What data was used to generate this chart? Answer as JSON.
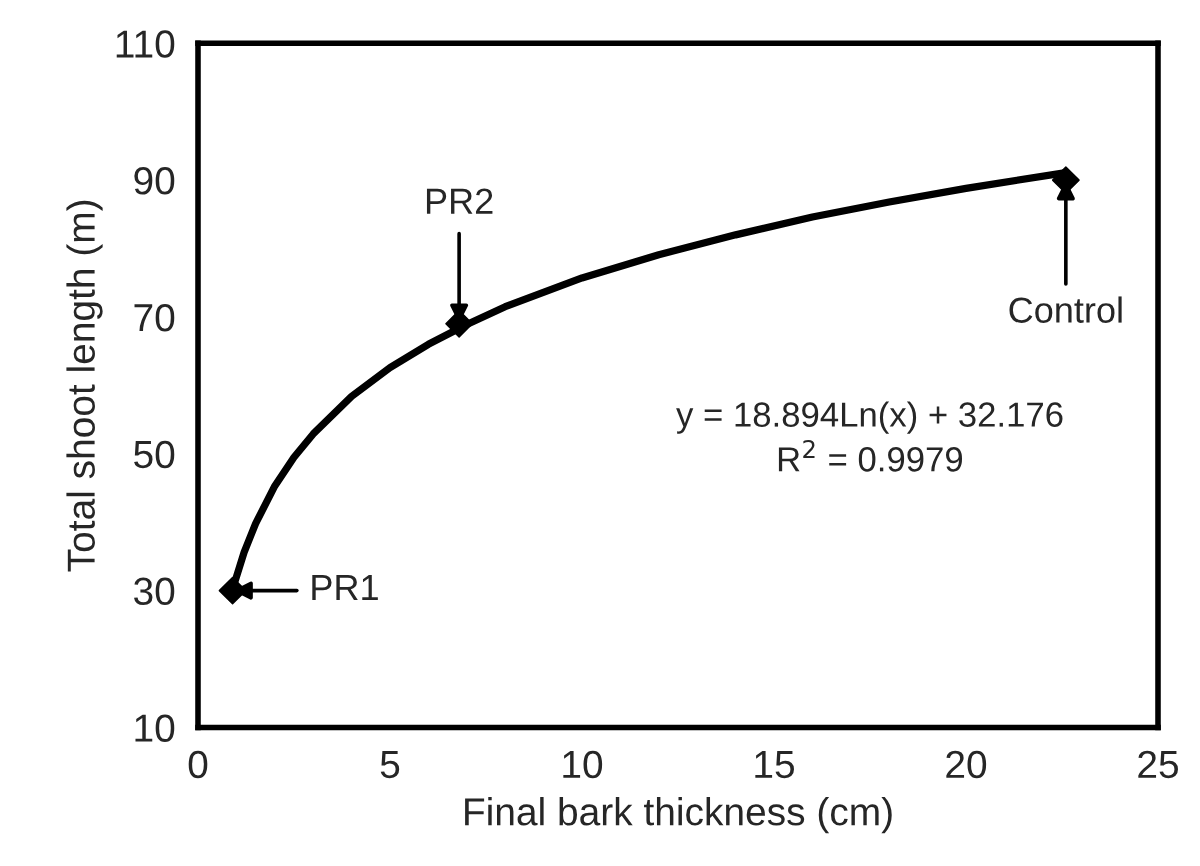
{
  "chart_data": {
    "type": "scatter",
    "xlabel": "Final bark thickness (cm)",
    "ylabel": "Total shoot length (m)",
    "xlim": [
      0,
      25
    ],
    "xticks": [
      0,
      5,
      10,
      15,
      20,
      25
    ],
    "ylim": [
      10,
      110
    ],
    "yticks": [
      10,
      30,
      50,
      70,
      90,
      110
    ],
    "grid": false,
    "legend": false,
    "series": [
      {
        "type": "line",
        "color": "#000000",
        "marker": "none",
        "line_style": "solid",
        "x": [
          0.9,
          1.2,
          1.5,
          2,
          2.5,
          3,
          4,
          5,
          6,
          7,
          8,
          10,
          12,
          14,
          16,
          18,
          20,
          22.6
        ],
        "values": [
          30.2,
          35.6,
          39.8,
          45.3,
          49.5,
          52.9,
          58.4,
          62.6,
          66.0,
          68.9,
          71.5,
          75.7,
          79.1,
          82.0,
          84.6,
          86.8,
          88.8,
          91.1
        ]
      },
      {
        "color": "#000000",
        "marker": "diamond",
        "x": [
          0.9,
          6.8,
          22.6
        ],
        "values": [
          30,
          69,
          90
        ]
      }
    ],
    "annotations": [
      {
        "text": "PR1",
        "x": 0.9,
        "y": 30
      },
      {
        "text": "PR2",
        "x": 6.8,
        "y": 69
      },
      {
        "text": "Control",
        "x": 22.6,
        "y": 90
      },
      "y = 18.894Ln(x) + 32.176\nR$^{2}$ = 0.9979"
    ]
  }
}
